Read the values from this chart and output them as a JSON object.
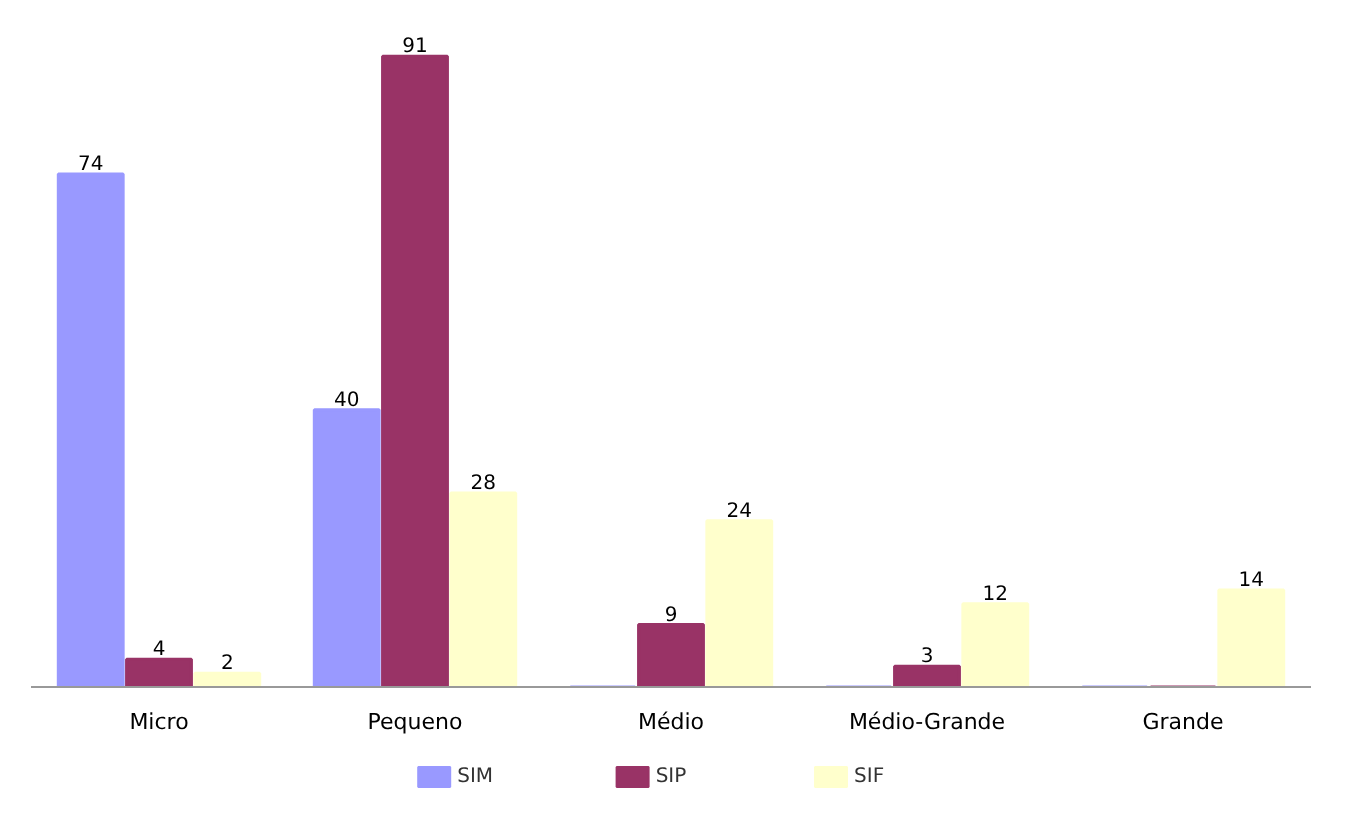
{
  "chart_data": {
    "type": "bar",
    "categories": [
      "Micro",
      "Pequeno",
      "Médio",
      "Médio-Grande",
      "Grande"
    ],
    "series": [
      {
        "name": "SIM",
        "color": "#9999ff",
        "values": [
          74,
          40,
          0,
          0,
          0
        ],
        "value_labels": [
          "74",
          "40",
          null,
          null,
          null
        ]
      },
      {
        "name": "SIP",
        "color": "#993366",
        "values": [
          4,
          91,
          9,
          3,
          0
        ],
        "value_labels": [
          "4",
          "91",
          "9",
          "3",
          null
        ]
      },
      {
        "name": "SIF",
        "color": "#ffffcc",
        "values": [
          2,
          28,
          24,
          12,
          14
        ],
        "value_labels": [
          "2",
          "28",
          "24",
          "12",
          "14"
        ]
      }
    ],
    "tick_labels": "x",
    "legend": "bottom"
  }
}
